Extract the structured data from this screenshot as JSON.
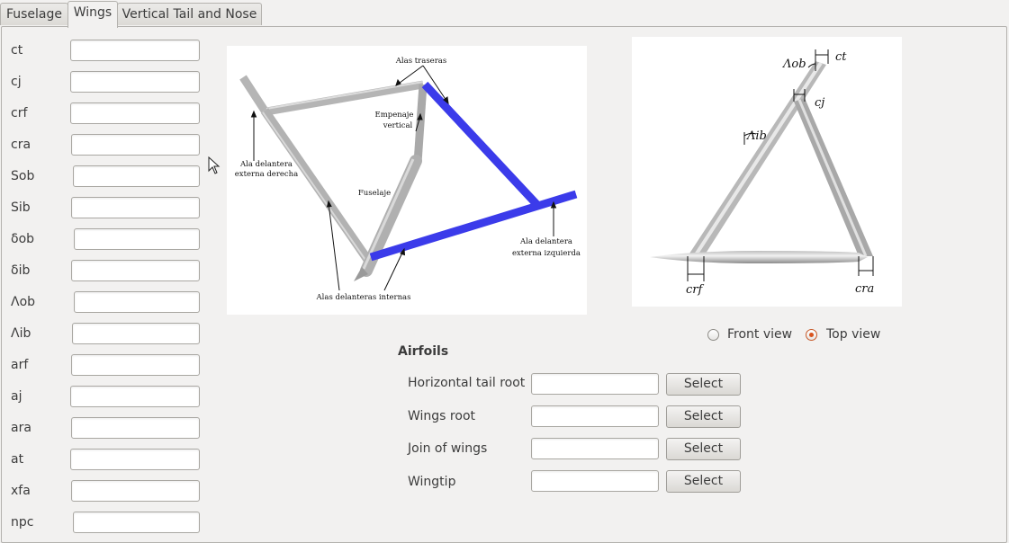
{
  "tabs": [
    "Fuselage",
    "Wings",
    "Vertical Tail and Nose"
  ],
  "active_tab": "Wings",
  "params": [
    {
      "label": "ct",
      "value": ""
    },
    {
      "label": "cj",
      "value": ""
    },
    {
      "label": "crf",
      "value": ""
    },
    {
      "label": "cra",
      "value": ""
    },
    {
      "label": "Sob",
      "value": ""
    },
    {
      "label": "Sib",
      "value": ""
    },
    {
      "label": "δob",
      "value": ""
    },
    {
      "label": "δib",
      "value": ""
    },
    {
      "label": "Λob",
      "value": ""
    },
    {
      "label": "Λib",
      "value": ""
    },
    {
      "label": "arf",
      "value": ""
    },
    {
      "label": "aj",
      "value": ""
    },
    {
      "label": "ara",
      "value": ""
    },
    {
      "label": "at",
      "value": ""
    },
    {
      "label": "xfa",
      "value": ""
    },
    {
      "label": "npc",
      "value": ""
    }
  ],
  "diagram_left": {
    "labels": {
      "alas_traseras": "Alas traseras",
      "empenaje_1": "Empenaje",
      "empenaje_2": "vertical",
      "fuselaje": "Fuselaje",
      "derecha_1": "Ala delantera",
      "derecha_2": "externa derecha",
      "izquierda_1": "Ala delantera",
      "izquierda_2": "externa izquierda",
      "internas": "Alas delanteras internas"
    },
    "highlight_color": "#3b3bea"
  },
  "diagram_right": {
    "labels": {
      "ct": "ct",
      "cj": "cj",
      "crf": "crf",
      "cra": "cra",
      "lambda_ob": "Λob",
      "lambda_ib": "Λib"
    }
  },
  "view": {
    "options": [
      "Front view",
      "Top view"
    ],
    "selected": "Top view"
  },
  "airfoils": {
    "title": "Airfoils",
    "button_label": "Select",
    "rows": [
      {
        "label": "Horizontal tail root",
        "value": ""
      },
      {
        "label": "Wings root",
        "value": ""
      },
      {
        "label": "Join of wings",
        "value": ""
      },
      {
        "label": "Wingtip",
        "value": ""
      }
    ]
  }
}
